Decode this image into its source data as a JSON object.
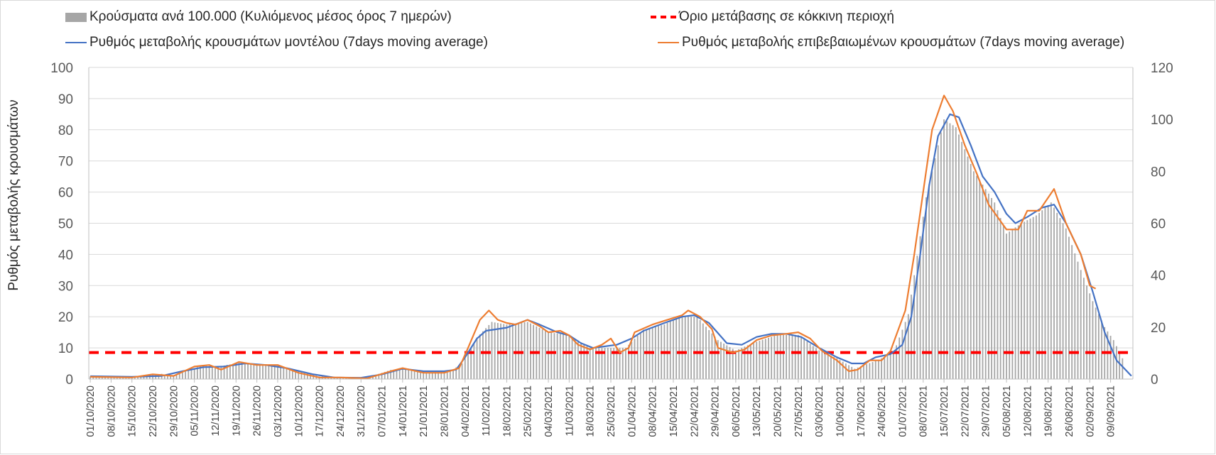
{
  "legend": {
    "bars": "Κρούσματα ανά 100.000 (Κυλιόμενος μέσος όρος 7 ημερών)",
    "threshold": "Όριο μετάβασης σε κόκκινη περιοχή",
    "model": "Ρυθμός μεταβολής κρουσμάτων μοντέλου (7days moving average)",
    "confirmed": "Ρυθμός μεταβολής επιβεβαιωμένων κρουσμάτων (7days moving average)"
  },
  "colors": {
    "bars": "#a6a6a6",
    "threshold": "#ff0000",
    "model": "#4472c4",
    "confirmed": "#ed7d31",
    "grid": "#d9d9d9"
  },
  "chart_data": {
    "type": "bar",
    "ylabel": "Ρυθμός μεταβολής κρουσμάτων",
    "y2label": "",
    "ylim": [
      0,
      100
    ],
    "y2lim": [
      0,
      120
    ],
    "yticks": [
      0,
      10,
      20,
      30,
      40,
      50,
      60,
      70,
      80,
      90,
      100
    ],
    "y2ticks": [
      0,
      20,
      40,
      60,
      80,
      100,
      120
    ],
    "grid": true,
    "legend_position": "top",
    "x_start": "01/10/2020",
    "x_end": "16/09/2021",
    "x_tick_labels": [
      "01/10/2020",
      "08/10/2020",
      "15/10/2020",
      "22/10/2020",
      "29/10/2020",
      "05/11/2020",
      "12/11/2020",
      "19/11/2020",
      "26/11/2020",
      "03/12/2020",
      "10/12/2020",
      "17/12/2020",
      "24/12/2020",
      "31/12/2020",
      "07/01/2021",
      "14/01/2021",
      "21/01/2021",
      "28/01/2021",
      "04/02/2021",
      "11/02/2021",
      "18/02/2021",
      "25/02/2021",
      "04/03/2021",
      "11/03/2021",
      "18/03/2021",
      "25/03/2021",
      "01/04/2021",
      "08/04/2021",
      "15/04/2021",
      "22/04/2021",
      "29/04/2021",
      "06/05/2021",
      "13/05/2021",
      "20/05/2021",
      "27/05/2021",
      "03/06/2021",
      "10/06/2021",
      "17/06/2021",
      "24/06/2021",
      "01/07/2021",
      "08/07/2021",
      "15/07/2021",
      "22/07/2021",
      "29/07/2021",
      "05/08/2021",
      "12/08/2021",
      "19/08/2021",
      "26/08/2021",
      "02/09/2021",
      "09/09/2021"
    ],
    "threshold": 8.5,
    "series": [
      {
        "name": "Κρούσματα ανά 100.000 (Κυλιόμενος μέσος όρος 7 ημερών)",
        "axis": "right",
        "type": "bar",
        "points": [
          [
            "01/10/2020",
            1
          ],
          [
            "15/10/2020",
            0.8
          ],
          [
            "25/10/2020",
            2
          ],
          [
            "29/10/2020",
            1
          ],
          [
            "02/11/2020",
            3
          ],
          [
            "07/11/2020",
            5
          ],
          [
            "14/11/2020",
            5
          ],
          [
            "21/11/2020",
            6.5
          ],
          [
            "27/11/2020",
            5.5
          ],
          [
            "04/12/2020",
            5
          ],
          [
            "10/12/2020",
            3
          ],
          [
            "17/12/2020",
            1
          ],
          [
            "24/12/2020",
            0.8
          ],
          [
            "02/01/2021",
            0.5
          ],
          [
            "10/01/2021",
            3.5
          ],
          [
            "16/01/2021",
            4
          ],
          [
            "22/01/2021",
            2.5
          ],
          [
            "30/01/2021",
            3
          ],
          [
            "03/02/2021",
            6
          ],
          [
            "08/02/2021",
            16
          ],
          [
            "13/02/2021",
            22
          ],
          [
            "18/02/2021",
            21
          ],
          [
            "25/02/2021",
            22
          ],
          [
            "04/03/2021",
            18
          ],
          [
            "11/03/2021",
            17
          ],
          [
            "18/03/2021",
            12
          ],
          [
            "25/03/2021",
            12
          ],
          [
            "30/03/2021",
            12
          ],
          [
            "05/04/2021",
            19
          ],
          [
            "12/04/2021",
            21
          ],
          [
            "17/04/2021",
            24
          ],
          [
            "23/04/2021",
            24
          ],
          [
            "30/04/2021",
            15
          ],
          [
            "06/05/2021",
            11
          ],
          [
            "12/05/2021",
            14
          ],
          [
            "20/05/2021",
            17
          ],
          [
            "27/05/2021",
            17
          ],
          [
            "03/06/2021",
            11
          ],
          [
            "09/06/2021",
            8
          ],
          [
            "15/06/2021",
            4
          ],
          [
            "22/06/2021",
            7
          ],
          [
            "28/06/2021",
            10
          ],
          [
            "03/07/2021",
            25
          ],
          [
            "09/07/2021",
            70
          ],
          [
            "15/07/2021",
            100
          ],
          [
            "19/07/2021",
            97
          ],
          [
            "25/07/2021",
            80
          ],
          [
            "01/08/2021",
            68
          ],
          [
            "05/08/2021",
            56
          ],
          [
            "10/08/2021",
            60
          ],
          [
            "15/08/2021",
            63
          ],
          [
            "20/08/2021",
            68
          ],
          [
            "25/08/2021",
            58
          ],
          [
            "30/08/2021",
            42
          ],
          [
            "03/09/2021",
            30
          ],
          [
            "07/09/2021",
            20
          ],
          [
            "10/09/2021",
            15
          ],
          [
            "13/09/2021",
            8
          ]
        ]
      },
      {
        "name": "Ρυθμός μεταβολής κρουσμάτων μοντέλου (7days moving average)",
        "axis": "left",
        "type": "line",
        "points": [
          [
            "01/10/2020",
            0.9
          ],
          [
            "15/10/2020",
            0.7
          ],
          [
            "25/10/2020",
            1
          ],
          [
            "01/11/2020",
            2.5
          ],
          [
            "08/11/2020",
            3.8
          ],
          [
            "15/11/2020",
            4
          ],
          [
            "22/11/2020",
            5
          ],
          [
            "29/11/2020",
            4.5
          ],
          [
            "06/12/2020",
            3.5
          ],
          [
            "15/12/2020",
            1.5
          ],
          [
            "22/12/2020",
            0.5
          ],
          [
            "31/12/2020",
            0.4
          ],
          [
            "07/01/2021",
            1.5
          ],
          [
            "14/01/2021",
            3.3
          ],
          [
            "21/01/2021",
            2.5
          ],
          [
            "28/01/2021",
            2.5
          ],
          [
            "01/02/2021",
            3
          ],
          [
            "04/02/2021",
            7
          ],
          [
            "08/02/2021",
            13
          ],
          [
            "11/02/2021",
            15.5
          ],
          [
            "18/02/2021",
            16.5
          ],
          [
            "25/02/2021",
            19
          ],
          [
            "01/03/2021",
            17.5
          ],
          [
            "07/03/2021",
            15
          ],
          [
            "11/03/2021",
            14
          ],
          [
            "15/03/2021",
            11.5
          ],
          [
            "19/03/2021",
            10
          ],
          [
            "27/03/2021",
            11
          ],
          [
            "01/04/2021",
            13
          ],
          [
            "05/04/2021",
            15.5
          ],
          [
            "12/04/2021",
            18
          ],
          [
            "18/04/2021",
            20
          ],
          [
            "22/04/2021",
            20.5
          ],
          [
            "27/04/2021",
            18
          ],
          [
            "03/05/2021",
            11.5
          ],
          [
            "08/05/2021",
            11
          ],
          [
            "13/05/2021",
            13.5
          ],
          [
            "18/05/2021",
            14.5
          ],
          [
            "23/05/2021",
            14.5
          ],
          [
            "28/05/2021",
            13.5
          ],
          [
            "03/06/2021",
            10
          ],
          [
            "09/06/2021",
            7
          ],
          [
            "14/06/2021",
            5
          ],
          [
            "18/06/2021",
            5
          ],
          [
            "22/06/2021",
            7
          ],
          [
            "27/06/2021",
            8
          ],
          [
            "01/07/2021",
            11
          ],
          [
            "04/07/2021",
            20
          ],
          [
            "07/07/2021",
            40
          ],
          [
            "10/07/2021",
            62
          ],
          [
            "13/07/2021",
            78
          ],
          [
            "17/07/2021",
            85
          ],
          [
            "20/07/2021",
            84
          ],
          [
            "24/07/2021",
            75
          ],
          [
            "28/07/2021",
            65
          ],
          [
            "01/08/2021",
            60
          ],
          [
            "05/08/2021",
            53
          ],
          [
            "08/08/2021",
            50
          ],
          [
            "12/08/2021",
            52
          ],
          [
            "17/08/2021",
            55
          ],
          [
            "21/08/2021",
            56
          ],
          [
            "25/08/2021",
            50
          ],
          [
            "30/08/2021",
            40
          ],
          [
            "03/09/2021",
            28
          ],
          [
            "07/09/2021",
            15
          ],
          [
            "11/09/2021",
            6
          ],
          [
            "16/09/2021",
            1
          ]
        ]
      },
      {
        "name": "Ρυθμός μεταβολής επιβεβαιωμένων κρουσμάτων (7days moving average)",
        "axis": "left",
        "type": "line",
        "points": [
          [
            "01/10/2020",
            0.7
          ],
          [
            "15/10/2020",
            0.5
          ],
          [
            "22/10/2020",
            1.5
          ],
          [
            "29/10/2020",
            1
          ],
          [
            "05/11/2020",
            4
          ],
          [
            "10/11/2020",
            4.5
          ],
          [
            "14/11/2020",
            3
          ],
          [
            "20/11/2020",
            5.5
          ],
          [
            "26/11/2020",
            4.5
          ],
          [
            "03/12/2020",
            4.5
          ],
          [
            "10/12/2020",
            2
          ],
          [
            "17/12/2020",
            0.5
          ],
          [
            "24/12/2020",
            0.5
          ],
          [
            "02/01/2021",
            0.2
          ],
          [
            "10/01/2021",
            2.5
          ],
          [
            "14/01/2021",
            3.5
          ],
          [
            "21/01/2021",
            2
          ],
          [
            "28/01/2021",
            2
          ],
          [
            "02/02/2021",
            3.5
          ],
          [
            "05/02/2021",
            10
          ],
          [
            "09/02/2021",
            19
          ],
          [
            "12/02/2021",
            22
          ],
          [
            "15/02/2021",
            19
          ],
          [
            "18/02/2021",
            18
          ],
          [
            "21/02/2021",
            17.5
          ],
          [
            "25/02/2021",
            19
          ],
          [
            "01/03/2021",
            17
          ],
          [
            "04/03/2021",
            15
          ],
          [
            "08/03/2021",
            15.5
          ],
          [
            "11/03/2021",
            14
          ],
          [
            "14/03/2021",
            11
          ],
          [
            "18/03/2021",
            9.5
          ],
          [
            "22/03/2021",
            11
          ],
          [
            "25/03/2021",
            13
          ],
          [
            "28/03/2021",
            8.5
          ],
          [
            "31/03/2021",
            10
          ],
          [
            "02/04/2021",
            15
          ],
          [
            "08/04/2021",
            17.5
          ],
          [
            "13/04/2021",
            19
          ],
          [
            "18/04/2021",
            20.5
          ],
          [
            "20/04/2021",
            22
          ],
          [
            "24/04/2021",
            20
          ],
          [
            "28/04/2021",
            16
          ],
          [
            "30/04/2021",
            10
          ],
          [
            "05/05/2021",
            8.5
          ],
          [
            "09/05/2021",
            9.5
          ],
          [
            "13/05/2021",
            12.5
          ],
          [
            "18/05/2021",
            14
          ],
          [
            "23/05/2021",
            14.5
          ],
          [
            "27/05/2021",
            15
          ],
          [
            "31/05/2021",
            13
          ],
          [
            "04/06/2021",
            9
          ],
          [
            "09/06/2021",
            6
          ],
          [
            "13/06/2021",
            2.5
          ],
          [
            "16/06/2021",
            3
          ],
          [
            "20/06/2021",
            6
          ],
          [
            "24/06/2021",
            6
          ],
          [
            "27/06/2021",
            9
          ],
          [
            "02/07/2021",
            22
          ],
          [
            "05/07/2021",
            40
          ],
          [
            "08/07/2021",
            60
          ],
          [
            "11/07/2021",
            80
          ],
          [
            "15/07/2021",
            91
          ],
          [
            "18/07/2021",
            86
          ],
          [
            "22/07/2021",
            75
          ],
          [
            "26/07/2021",
            66
          ],
          [
            "30/07/2021",
            56
          ],
          [
            "05/08/2021",
            48
          ],
          [
            "09/08/2021",
            48
          ],
          [
            "12/08/2021",
            54
          ],
          [
            "16/08/2021",
            54
          ],
          [
            "21/08/2021",
            61
          ],
          [
            "25/08/2021",
            50
          ],
          [
            "30/08/2021",
            40
          ],
          [
            "02/09/2021",
            30
          ],
          [
            "04/09/2021",
            29
          ]
        ]
      }
    ]
  }
}
